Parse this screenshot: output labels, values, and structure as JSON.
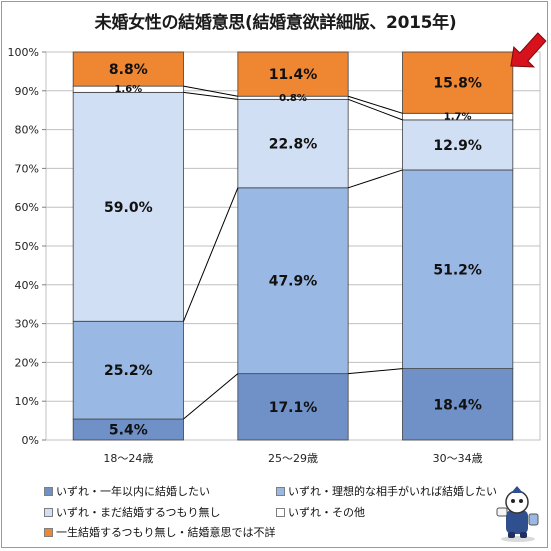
{
  "colors": {
    "s1": "#6f91c8",
    "s2": "#9ab8e4",
    "s3": "#d0dff3",
    "s4": "#ffffff",
    "s5": "#ef8632",
    "arrow": "#d7121d",
    "grid": "#c0c0c0",
    "bar_stroke": "#404040",
    "line": "#000000"
  },
  "chart_data": {
    "type": "bar",
    "stacked": true,
    "title": "未婚女性の結婚意思(結婚意欲詳細版、2015年)",
    "categories": [
      "18～24歳",
      "25～29歳",
      "30～34歳"
    ],
    "ylim": [
      0,
      100
    ],
    "ytick_labels": [
      "0%",
      "10%",
      "20%",
      "30%",
      "40%",
      "50%",
      "60%",
      "70%",
      "80%",
      "90%",
      "100%"
    ],
    "grid": true,
    "series": [
      {
        "name": "いずれ・一年以内に結婚したい",
        "values": [
          5.4,
          17.1,
          18.4
        ],
        "labels": [
          "5.4%",
          "17.1%",
          "18.4%"
        ]
      },
      {
        "name": "いずれ・理想的な相手がいれば結婚したい",
        "values": [
          25.2,
          47.9,
          51.2
        ],
        "labels": [
          "25.2%",
          "47.9%",
          "51.2%"
        ]
      },
      {
        "name": "いずれ・まだ結婚するつもり無し",
        "values": [
          59.0,
          22.8,
          12.9
        ],
        "labels": [
          "59.0%",
          "22.8%",
          "12.9%"
        ]
      },
      {
        "name": "いずれ・その他",
        "values": [
          1.6,
          0.8,
          1.7
        ],
        "labels": [
          "1.6%",
          "0.8%",
          "1.7%"
        ]
      },
      {
        "name": "一生結婚するつもり無し・結婚意思では不詳",
        "values": [
          8.8,
          11.4,
          15.8
        ],
        "labels": [
          "8.8%",
          "11.4%",
          "15.8%"
        ]
      }
    ],
    "legend_position": "bottom"
  }
}
